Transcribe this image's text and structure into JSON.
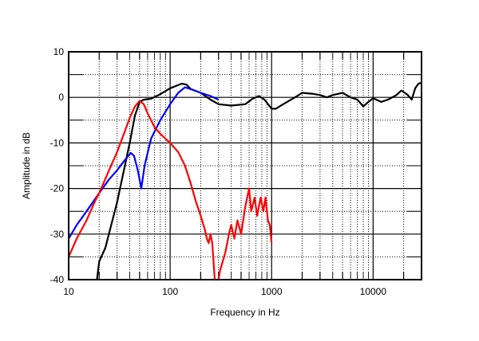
{
  "chart_data": {
    "type": "line",
    "title": "",
    "xlabel": "Frequency in Hz",
    "ylabel": "Amplitude in dB",
    "xscale": "log",
    "xlim": [
      10,
      30000
    ],
    "ylim": [
      -40,
      10
    ],
    "grid": true,
    "x_ticks": [
      {
        "value": 10,
        "label": "10"
      },
      {
        "value": 100,
        "label": "100"
      },
      {
        "value": 1000,
        "label": "1000"
      },
      {
        "value": 10000,
        "label": "10000"
      }
    ],
    "y_ticks": [
      {
        "value": 10,
        "label": "10"
      },
      {
        "value": 0,
        "label": "0"
      },
      {
        "value": -10,
        "label": "-10"
      },
      {
        "value": -20,
        "label": "-20"
      },
      {
        "value": -30,
        "label": "-30"
      },
      {
        "value": -40,
        "label": "-40"
      }
    ],
    "series": [
      {
        "color": "#000000",
        "points": [
          [
            19,
            -40
          ],
          [
            20,
            -36
          ],
          [
            23,
            -33
          ],
          [
            27,
            -27
          ],
          [
            30,
            -23
          ],
          [
            35,
            -16
          ],
          [
            40,
            -10
          ],
          [
            45,
            -4
          ],
          [
            50,
            -1
          ],
          [
            55,
            -0.5
          ],
          [
            65,
            -0.3
          ],
          [
            80,
            0.7
          ],
          [
            100,
            2
          ],
          [
            130,
            3
          ],
          [
            145,
            2.8
          ],
          [
            160,
            1.8
          ],
          [
            200,
            1
          ],
          [
            250,
            -0.5
          ],
          [
            300,
            -1.5
          ],
          [
            400,
            -1.8
          ],
          [
            550,
            -1.5
          ],
          [
            650,
            -0.3
          ],
          [
            750,
            0.3
          ],
          [
            850,
            -0.5
          ],
          [
            1000,
            -2.5
          ],
          [
            1100,
            -2.5
          ],
          [
            1300,
            -1.5
          ],
          [
            1700,
            0
          ],
          [
            2000,
            1
          ],
          [
            2500,
            0.8
          ],
          [
            3000,
            0.5
          ],
          [
            3500,
            0
          ],
          [
            4000,
            0.5
          ],
          [
            5000,
            1
          ],
          [
            6000,
            0
          ],
          [
            7000,
            -0.5
          ],
          [
            8000,
            -2
          ],
          [
            9000,
            -1
          ],
          [
            10000,
            -0.2
          ],
          [
            12000,
            -1
          ],
          [
            14000,
            -0.5
          ],
          [
            17000,
            0.5
          ],
          [
            19000,
            1.5
          ],
          [
            22000,
            0.5
          ],
          [
            24000,
            -0.5
          ],
          [
            26000,
            2
          ],
          [
            28000,
            3
          ],
          [
            30000,
            3.2
          ]
        ]
      },
      {
        "color": "#0000ff",
        "points": [
          [
            10,
            -31
          ],
          [
            12,
            -28
          ],
          [
            15,
            -25
          ],
          [
            20,
            -21
          ],
          [
            25,
            -18
          ],
          [
            30,
            -16
          ],
          [
            35,
            -14
          ],
          [
            41,
            -12.2
          ],
          [
            44,
            -12.8
          ],
          [
            48,
            -16
          ],
          [
            52,
            -20
          ],
          [
            56,
            -15
          ],
          [
            65,
            -9
          ],
          [
            80,
            -5
          ],
          [
            100,
            -1.5
          ],
          [
            120,
            1
          ],
          [
            140,
            2.2
          ],
          [
            160,
            1.8
          ],
          [
            200,
            1
          ],
          [
            250,
            0.3
          ],
          [
            300,
            -0.5
          ]
        ]
      },
      {
        "color": "#ff0000",
        "points": [
          [
            10,
            -35
          ],
          [
            12,
            -31
          ],
          [
            15,
            -27
          ],
          [
            18,
            -23
          ],
          [
            20,
            -21
          ],
          [
            25,
            -16
          ],
          [
            30,
            -12
          ],
          [
            35,
            -8
          ],
          [
            40,
            -4.5
          ],
          [
            45,
            -2
          ],
          [
            50,
            -0.8
          ],
          [
            55,
            -1.5
          ],
          [
            60,
            -3.5
          ],
          [
            70,
            -6.5
          ],
          [
            80,
            -8
          ],
          [
            100,
            -10
          ],
          [
            120,
            -12
          ],
          [
            140,
            -15
          ],
          [
            160,
            -19
          ],
          [
            180,
            -23
          ],
          [
            200,
            -26
          ],
          [
            220,
            -29
          ],
          [
            230,
            -31
          ],
          [
            240,
            -32
          ],
          [
            250,
            -30
          ],
          [
            260,
            -32
          ],
          [
            275,
            -40
          ],
          [
            300,
            -40
          ],
          [
            310,
            -38
          ],
          [
            330,
            -36
          ],
          [
            350,
            -34
          ],
          [
            380,
            -30
          ],
          [
            400,
            -28
          ],
          [
            430,
            -31
          ],
          [
            460,
            -27
          ],
          [
            500,
            -30
          ],
          [
            550,
            -24
          ],
          [
            600,
            -20
          ],
          [
            630,
            -25
          ],
          [
            680,
            -22
          ],
          [
            720,
            -26
          ],
          [
            780,
            -22
          ],
          [
            830,
            -25
          ],
          [
            870,
            -22
          ],
          [
            920,
            -27
          ],
          [
            960,
            -28
          ],
          [
            1000,
            -32
          ]
        ]
      }
    ]
  }
}
